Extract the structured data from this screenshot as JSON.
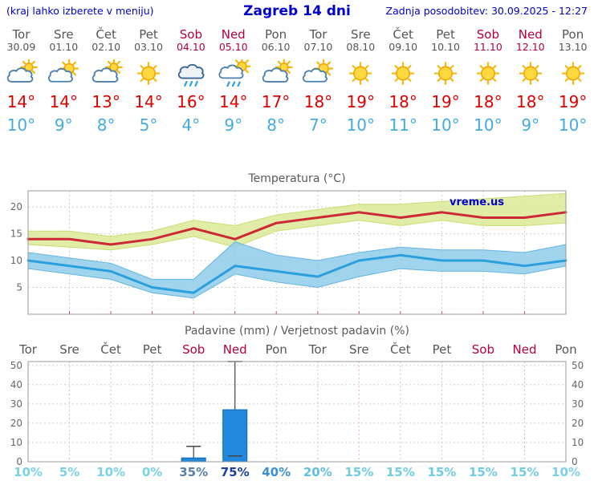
{
  "header": {
    "menu_hint": "(kraj lahko izberete v meniju)",
    "title": "Zagreb 14 dni",
    "last_update": "Zadnja posodobitev: 30.09.2025 - 12:27"
  },
  "colors": {
    "header_blue": "#0000cc",
    "weekday_gray": "#555555",
    "weekend_red": "#b5003c",
    "high_temp_red": "#dd0000",
    "low_temp_blue": "#45aadd",
    "temp_line_max": "#cc2936",
    "temp_line_min": "#2b9fdd",
    "temp_band_max": "#dcea96",
    "temp_band_min": "#8fcbe9",
    "bar_blue": "#2288dd",
    "grid_gray": "#cccccc",
    "grid_red": "#e5b8b8"
  },
  "days": [
    {
      "name": "Tor",
      "date": "30.09",
      "weekend": false,
      "icon": "mostly-cloudy",
      "high": "14°",
      "low": "10°"
    },
    {
      "name": "Sre",
      "date": "01.10",
      "weekend": false,
      "icon": "partly-cloudy",
      "high": "14°",
      "low": "9°"
    },
    {
      "name": "Čet",
      "date": "02.10",
      "weekend": false,
      "icon": "mostly-cloudy",
      "high": "13°",
      "low": "8°"
    },
    {
      "name": "Pet",
      "date": "03.10",
      "weekend": false,
      "icon": "sunny",
      "high": "14°",
      "low": "5°"
    },
    {
      "name": "Sob",
      "date": "04.10",
      "weekend": true,
      "icon": "rain",
      "high": "16°",
      "low": "4°"
    },
    {
      "name": "Ned",
      "date": "05.10",
      "weekend": true,
      "icon": "rain-sun",
      "high": "14°",
      "low": "9°"
    },
    {
      "name": "Pon",
      "date": "06.10",
      "weekend": false,
      "icon": "mostly-cloudy",
      "high": "17°",
      "low": "8°"
    },
    {
      "name": "Tor",
      "date": "07.10",
      "weekend": false,
      "icon": "partly-cloudy",
      "high": "18°",
      "low": "7°"
    },
    {
      "name": "Sre",
      "date": "08.10",
      "weekend": false,
      "icon": "sunny",
      "high": "19°",
      "low": "10°"
    },
    {
      "name": "Čet",
      "date": "09.10",
      "weekend": false,
      "icon": "sunny",
      "high": "18°",
      "low": "11°"
    },
    {
      "name": "Pet",
      "date": "10.10",
      "weekend": false,
      "icon": "sunny",
      "high": "19°",
      "low": "10°"
    },
    {
      "name": "Sob",
      "date": "11.10",
      "weekend": true,
      "icon": "sunny",
      "high": "18°",
      "low": "10°"
    },
    {
      "name": "Ned",
      "date": "12.10",
      "weekend": true,
      "icon": "sunny",
      "high": "18°",
      "low": "9°"
    },
    {
      "name": "Pon",
      "date": "13.10",
      "weekend": false,
      "icon": "sunny",
      "high": "19°",
      "low": "10°"
    }
  ],
  "chart_data": [
    {
      "type": "line",
      "title": "Temperatura (°C)",
      "watermark": "vreme.us",
      "x_labels": [
        "Tor 30.09",
        "Sre 01.10",
        "Čet 02.10",
        "Pet 03.10",
        "Sob 04.10",
        "Ned 05.10",
        "Pon 06.10",
        "Tor 07.10",
        "Sre 08.10",
        "Čet 09.10",
        "Pet 10.10",
        "Sob 11.10",
        "Ned 12.10",
        "Pon 13.10"
      ],
      "ylabel": "°C",
      "ylim": [
        0,
        23
      ],
      "yticks": [
        5,
        10,
        15,
        20
      ],
      "series": [
        {
          "name": "max-temperature",
          "values": [
            14,
            14,
            13,
            14,
            16,
            14,
            17,
            18,
            19,
            18,
            19,
            18,
            18,
            19
          ]
        },
        {
          "name": "min-temperature",
          "values": [
            10,
            9,
            8,
            5,
            4,
            9,
            8,
            7,
            10,
            11,
            10,
            10,
            9,
            10
          ]
        },
        {
          "name": "max-range-upper",
          "values": [
            15.5,
            15.5,
            14.5,
            15.5,
            17.5,
            16.5,
            18.5,
            19.5,
            20.5,
            20.5,
            21,
            21.5,
            22,
            22.5
          ]
        },
        {
          "name": "max-range-lower",
          "values": [
            13,
            12.5,
            12,
            13,
            14.5,
            12.5,
            15.5,
            16.5,
            17.5,
            16.5,
            17.5,
            16.5,
            16.5,
            17
          ]
        },
        {
          "name": "min-range-upper",
          "values": [
            11.5,
            10.5,
            9.5,
            6.5,
            6.5,
            13.5,
            11,
            10,
            11.5,
            12.5,
            12,
            12,
            11.5,
            13
          ]
        },
        {
          "name": "min-range-lower",
          "values": [
            8.5,
            7.5,
            6.5,
            4,
            3,
            7.5,
            6,
            5,
            7,
            8.5,
            8,
            8,
            7.5,
            9
          ]
        }
      ]
    },
    {
      "type": "bar",
      "title": "Padavine (mm) / Verjetnost padavin (%)",
      "categories": [
        "Tor",
        "Sre",
        "Čet",
        "Pet",
        "Sob",
        "Ned",
        "Pon",
        "Tor",
        "Sre",
        "Čet",
        "Pet",
        "Sob",
        "Ned",
        "Pon"
      ],
      "weekend_indices": [
        4,
        5,
        11,
        12
      ],
      "values": [
        0,
        0,
        0,
        0,
        2,
        27,
        0,
        0,
        0,
        0,
        0,
        0,
        0,
        0
      ],
      "whisker_max": [
        0,
        0,
        0,
        0,
        8,
        52,
        0,
        0,
        0,
        0,
        0,
        0,
        0,
        0
      ],
      "whisker_min": [
        0,
        0,
        0,
        0,
        0,
        3,
        0,
        0,
        0,
        0,
        0,
        0,
        0,
        0
      ],
      "ylim": [
        0,
        52
      ],
      "yticks": [
        0,
        10,
        20,
        30,
        40,
        50
      ],
      "probabilities": [
        {
          "label": "10%",
          "color": "#7ad2e6"
        },
        {
          "label": "5%",
          "color": "#7ad2e6"
        },
        {
          "label": "10%",
          "color": "#7ad2e6"
        },
        {
          "label": "0%",
          "color": "#7ad2e6"
        },
        {
          "label": "35%",
          "color": "#5b7fa6"
        },
        {
          "label": "75%",
          "color": "#1b3fa0"
        },
        {
          "label": "40%",
          "color": "#3b8fd0"
        },
        {
          "label": "20%",
          "color": "#5fc0e0"
        },
        {
          "label": "15%",
          "color": "#6fcce2"
        },
        {
          "label": "15%",
          "color": "#6fcce2"
        },
        {
          "label": "15%",
          "color": "#6fcce2"
        },
        {
          "label": "15%",
          "color": "#6fcce2"
        },
        {
          "label": "15%",
          "color": "#6fcce2"
        },
        {
          "label": "10%",
          "color": "#7ad2e6"
        }
      ]
    }
  ]
}
